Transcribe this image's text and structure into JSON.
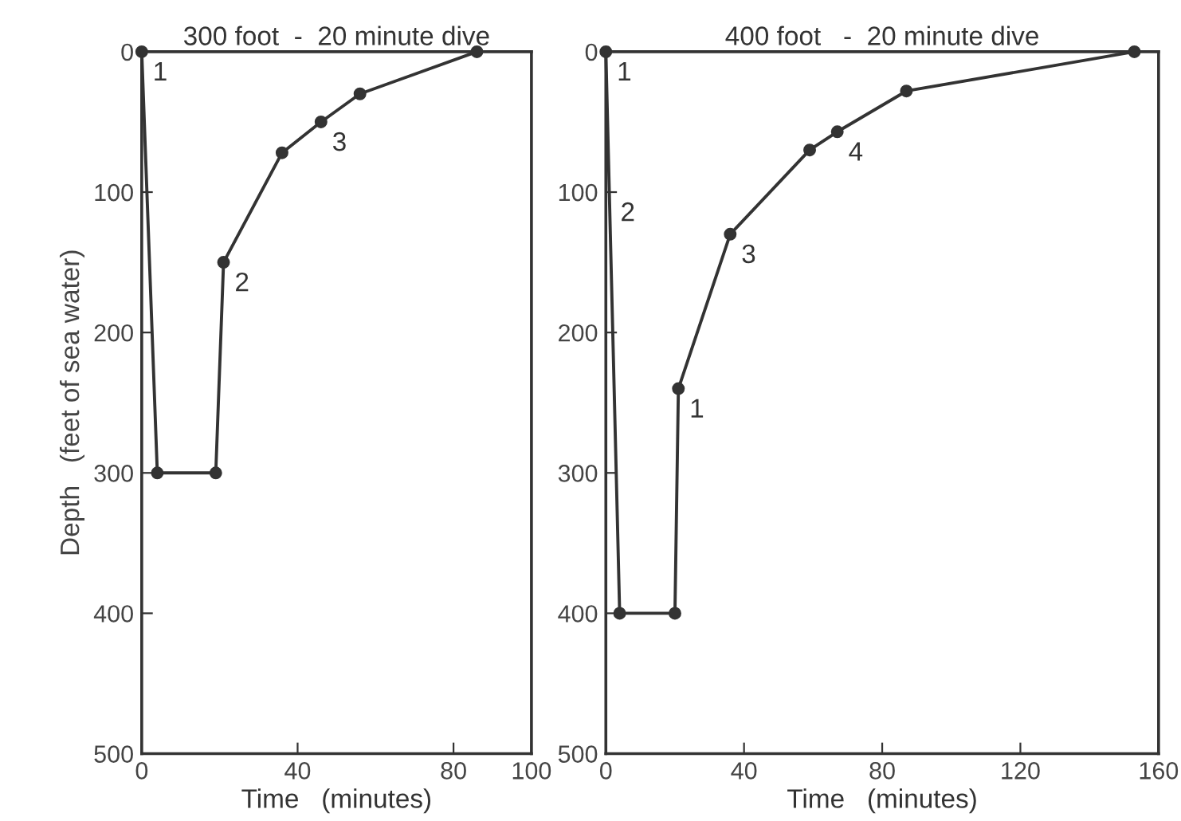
{
  "chart_data": [
    {
      "type": "line",
      "title": "300 foot  -  20 minute dive",
      "xlabel": "Time   (minutes)",
      "ylabel": "Depth   (feet of sea water)",
      "x": [
        0,
        4,
        19,
        21,
        36,
        46,
        56,
        86
      ],
      "series": [
        {
          "color": "#333333",
          "values": [
            0,
            300,
            300,
            150,
            72,
            50,
            30,
            0
          ]
        }
      ],
      "xlim": [
        0,
        100
      ],
      "xticks": [
        0,
        40,
        80,
        100
      ],
      "ylim": [
        500,
        0
      ],
      "yticks": [
        0,
        100,
        200,
        300,
        400,
        500
      ],
      "marker": "circle",
      "line_style": "solid",
      "grid": false,
      "annotations": [
        {
          "text": "1",
          "x": 0,
          "y": 0
        },
        {
          "text": "2",
          "x": 21,
          "y": 150
        },
        {
          "text": "3",
          "x": 46,
          "y": 50
        }
      ]
    },
    {
      "type": "line",
      "title": "400 foot   -  20 minute dive",
      "xlabel": "Time   (minutes)",
      "x": [
        0,
        4,
        20,
        21,
        36,
        59,
        67,
        87,
        153
      ],
      "series": [
        {
          "color": "#333333",
          "values": [
            0,
            400,
            400,
            240,
            130,
            70,
            57,
            28,
            0
          ]
        }
      ],
      "xlim": [
        0,
        160
      ],
      "xticks": [
        0,
        40,
        80,
        120,
        160
      ],
      "ylim": [
        500,
        0
      ],
      "yticks": [
        0,
        100,
        200,
        300,
        400,
        500
      ],
      "marker": "circle",
      "line_style": "solid",
      "grid": false,
      "annotations": [
        {
          "text": "1",
          "x": 0,
          "y": 0
        },
        {
          "text": "2",
          "x": 1,
          "y": 100
        },
        {
          "text": "1",
          "x": 21,
          "y": 240
        },
        {
          "text": "3",
          "x": 36,
          "y": 130
        },
        {
          "text": "4",
          "x": 67,
          "y": 57
        }
      ]
    }
  ]
}
